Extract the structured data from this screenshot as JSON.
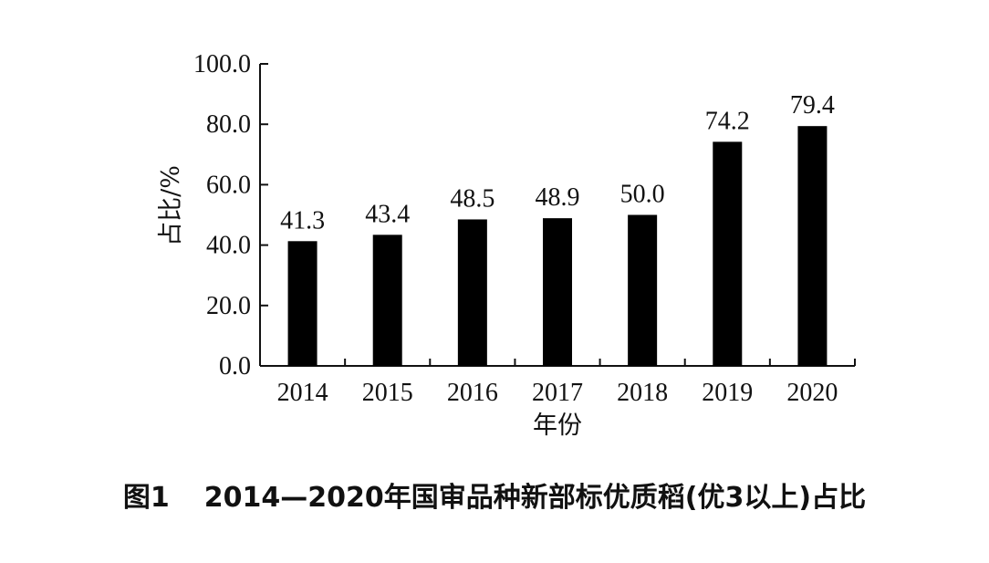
{
  "caption": {
    "figure_number": "图1",
    "text": "2014—2020年国审品种新部标优质稻(优3以上)占比"
  },
  "chart_data": {
    "type": "bar",
    "categories": [
      "2014",
      "2015",
      "2016",
      "2017",
      "2018",
      "2019",
      "2020"
    ],
    "values": [
      41.3,
      43.4,
      48.5,
      48.9,
      50.0,
      74.2,
      79.4
    ],
    "value_labels": [
      "41.3",
      "43.4",
      "48.5",
      "48.9",
      "50.0",
      "74.2",
      "79.4"
    ],
    "title": "",
    "xlabel": "年份",
    "ylabel": "占比/%",
    "ylim": [
      0,
      100
    ],
    "yticks": [
      0,
      20,
      40,
      60,
      80,
      100
    ],
    "ytick_labels": [
      "0.0",
      "20.0",
      "40.0",
      "60.0",
      "80.0",
      "100.0"
    ],
    "grid": false,
    "legend": "none",
    "bar_color": "#000000"
  }
}
